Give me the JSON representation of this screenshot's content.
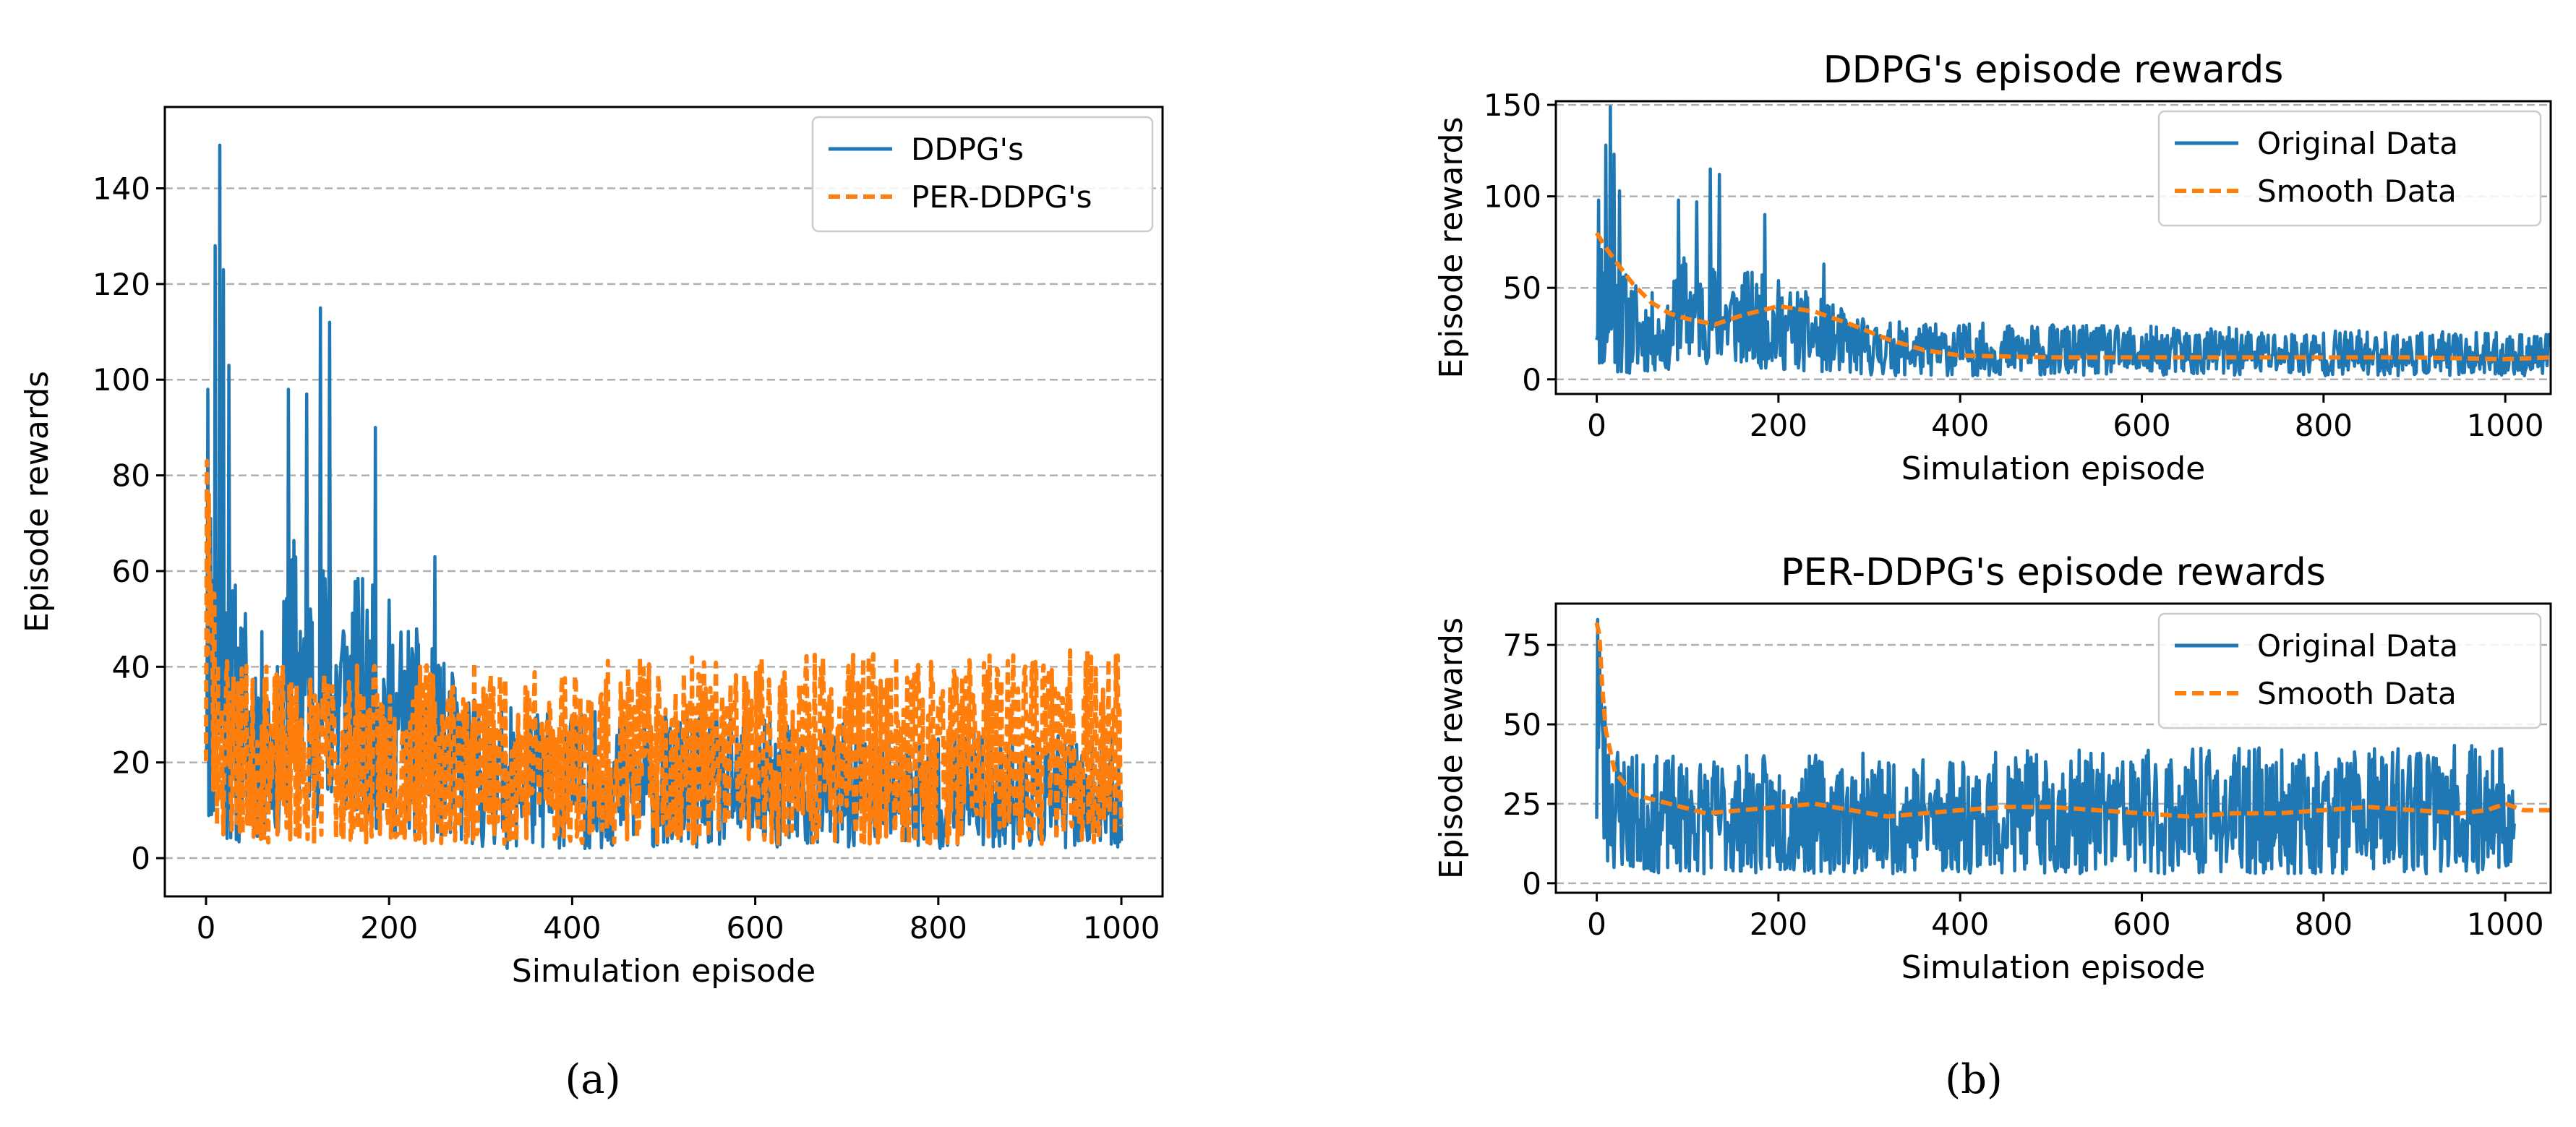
{
  "colors": {
    "blue": "#1f77b4",
    "orange": "#ff7f0e",
    "grid": "#b0b0b0",
    "axis": "#000000"
  },
  "captions": {
    "a": "(a)",
    "b": "(b)"
  },
  "chart_data": [
    {
      "id": "a",
      "type": "line",
      "title": "",
      "xlabel": "Simulation episode",
      "ylabel": "Episode rewards",
      "xlim": [
        -45,
        1045
      ],
      "ylim": [
        -8,
        157
      ],
      "xticks": [
        0,
        200,
        400,
        600,
        800,
        1000
      ],
      "xtick_labels": [
        "0",
        "200",
        "400",
        "600",
        "800",
        "1000"
      ],
      "yticks": [
        0,
        20,
        40,
        60,
        80,
        100,
        120,
        140
      ],
      "ytick_labels": [
        "0",
        "20",
        "40",
        "60",
        "80",
        "100",
        "120",
        "140"
      ],
      "grid": "y-dashed",
      "legend": {
        "position": "top-right",
        "entries": [
          {
            "label": "DDPG's",
            "style": "solid",
            "color": "#1f77b4"
          },
          {
            "label": "PER-DDPG's",
            "style": "dashed",
            "color": "#ff7f0e"
          }
        ]
      },
      "series": [
        {
          "name": "DDPG's",
          "style": "solid",
          "color": "#1f77b4",
          "x_range": [
            0,
            1000
          ],
          "peaks": [
            [
              2,
              98
            ],
            [
              10,
              128
            ],
            [
              15,
              149
            ],
            [
              19,
              123
            ],
            [
              25,
              103
            ],
            [
              90,
              98
            ],
            [
              110,
              97
            ],
            [
              125,
              115
            ],
            [
              135,
              112
            ],
            [
              185,
              90
            ],
            [
              250,
              63
            ]
          ],
          "envelope": [
            [
              0,
              [
                5,
                90
              ]
            ],
            [
              30,
              [
                2,
                60
              ]
            ],
            [
              80,
              [
                5,
                40
              ]
            ],
            [
              90,
              [
                10,
                70
              ]
            ],
            [
              200,
              [
                5,
                55
              ]
            ],
            [
              300,
              [
                2,
                32
              ]
            ],
            [
              1000,
              [
                2,
                25
              ]
            ]
          ]
        },
        {
          "name": "PER-DDPG's",
          "style": "dashed",
          "color": "#ff7f0e",
          "x_range": [
            0,
            1000
          ],
          "peaks": [
            [
              1,
              83
            ],
            [
              3,
              76
            ],
            [
              6,
              50
            ]
          ],
          "envelope": [
            [
              0,
              [
                5,
                82
              ]
            ],
            [
              15,
              [
                4,
                48
              ]
            ],
            [
              50,
              [
                3,
                40
              ]
            ],
            [
              1000,
              [
                3,
                44
              ]
            ]
          ]
        }
      ]
    },
    {
      "id": "b-top",
      "type": "line",
      "title": "DDPG's episode rewards",
      "xlabel": "Simulation episode",
      "ylabel": "Episode rewards",
      "xlim": [
        -45,
        1050
      ],
      "ylim": [
        -8,
        152
      ],
      "xticks": [
        0,
        200,
        400,
        600,
        800,
        1000
      ],
      "xtick_labels": [
        "0",
        "200",
        "400",
        "600",
        "800",
        "1000"
      ],
      "yticks": [
        0,
        50,
        100,
        150
      ],
      "ytick_labels": [
        "0",
        "50",
        "100",
        "150"
      ],
      "grid": "y-dashed",
      "legend": {
        "position": "top-right",
        "entries": [
          {
            "label": "Original Data",
            "style": "solid",
            "color": "#1f77b4"
          },
          {
            "label": "Smooth Data",
            "style": "dashed",
            "color": "#ff7f0e"
          }
        ]
      },
      "series": [
        {
          "name": "Original Data",
          "style": "solid",
          "color": "#1f77b4",
          "x_range": [
            0,
            1050
          ],
          "peaks": [
            [
              2,
              98
            ],
            [
              10,
              128
            ],
            [
              15,
              149
            ],
            [
              19,
              123
            ],
            [
              25,
              103
            ],
            [
              90,
              98
            ],
            [
              110,
              97
            ],
            [
              125,
              115
            ],
            [
              135,
              112
            ],
            [
              185,
              90
            ],
            [
              250,
              63
            ]
          ],
          "envelope": [
            [
              0,
              [
                5,
                90
              ]
            ],
            [
              30,
              [
                2,
                60
              ]
            ],
            [
              80,
              [
                5,
                40
              ]
            ],
            [
              90,
              [
                10,
                70
              ]
            ],
            [
              200,
              [
                5,
                55
              ]
            ],
            [
              300,
              [
                2,
                32
              ]
            ],
            [
              1050,
              [
                2,
                25
              ]
            ]
          ]
        },
        {
          "name": "Smooth Data",
          "style": "dashed",
          "color": "#ff7f0e",
          "points": [
            [
              0,
              80
            ],
            [
              10,
              72
            ],
            [
              20,
              65
            ],
            [
              40,
              52
            ],
            [
              60,
              42
            ],
            [
              80,
              36
            ],
            [
              100,
              33
            ],
            [
              130,
              30
            ],
            [
              160,
              35
            ],
            [
              200,
              40
            ],
            [
              240,
              37
            ],
            [
              280,
              30
            ],
            [
              320,
              22
            ],
            [
              360,
              16
            ],
            [
              400,
              13
            ],
            [
              500,
              12
            ],
            [
              600,
              12
            ],
            [
              700,
              12
            ],
            [
              800,
              12
            ],
            [
              900,
              12
            ],
            [
              1000,
              11
            ],
            [
              1050,
              12
            ]
          ]
        }
      ]
    },
    {
      "id": "b-bottom",
      "type": "line",
      "title": "PER-DDPG's episode rewards",
      "xlabel": "Simulation episode",
      "ylabel": "Episode rewards",
      "xlim": [
        -45,
        1050
      ],
      "ylim": [
        -3,
        88
      ],
      "xticks": [
        0,
        200,
        400,
        600,
        800,
        1000
      ],
      "xtick_labels": [
        "0",
        "200",
        "400",
        "600",
        "800",
        "1000"
      ],
      "yticks": [
        0,
        25,
        50,
        75
      ],
      "ytick_labels": [
        "0",
        "25",
        "50",
        "75"
      ],
      "grid": "y-dashed",
      "legend": {
        "position": "top-right",
        "entries": [
          {
            "label": "Original Data",
            "style": "solid",
            "color": "#1f77b4"
          },
          {
            "label": "Smooth Data",
            "style": "dashed",
            "color": "#ff7f0e"
          }
        ]
      },
      "series": [
        {
          "name": "Original Data",
          "style": "solid",
          "color": "#1f77b4",
          "x_range": [
            0,
            1010
          ],
          "peaks": [
            [
              1,
              83
            ],
            [
              3,
              76
            ],
            [
              6,
              50
            ]
          ],
          "envelope": [
            [
              0,
              [
                5,
                82
              ]
            ],
            [
              15,
              [
                4,
                48
              ]
            ],
            [
              50,
              [
                3,
                40
              ]
            ],
            [
              1010,
              [
                3,
                44
              ]
            ]
          ]
        },
        {
          "name": "Smooth Data",
          "style": "dashed",
          "color": "#ff7f0e",
          "points": [
            [
              0,
              82
            ],
            [
              3,
              78
            ],
            [
              6,
              62
            ],
            [
              10,
              48
            ],
            [
              20,
              35
            ],
            [
              40,
              28
            ],
            [
              80,
              25
            ],
            [
              120,
              22
            ],
            [
              160,
              23
            ],
            [
              200,
              24
            ],
            [
              240,
              25
            ],
            [
              280,
              23
            ],
            [
              320,
              21
            ],
            [
              360,
              22
            ],
            [
              400,
              23
            ],
            [
              450,
              24
            ],
            [
              500,
              24
            ],
            [
              550,
              23
            ],
            [
              600,
              22
            ],
            [
              650,
              21
            ],
            [
              700,
              22
            ],
            [
              750,
              22
            ],
            [
              800,
              23
            ],
            [
              850,
              24
            ],
            [
              900,
              23
            ],
            [
              950,
              22
            ],
            [
              980,
              23
            ],
            [
              1000,
              25
            ],
            [
              1020,
              23
            ],
            [
              1050,
              23
            ]
          ]
        }
      ]
    }
  ]
}
